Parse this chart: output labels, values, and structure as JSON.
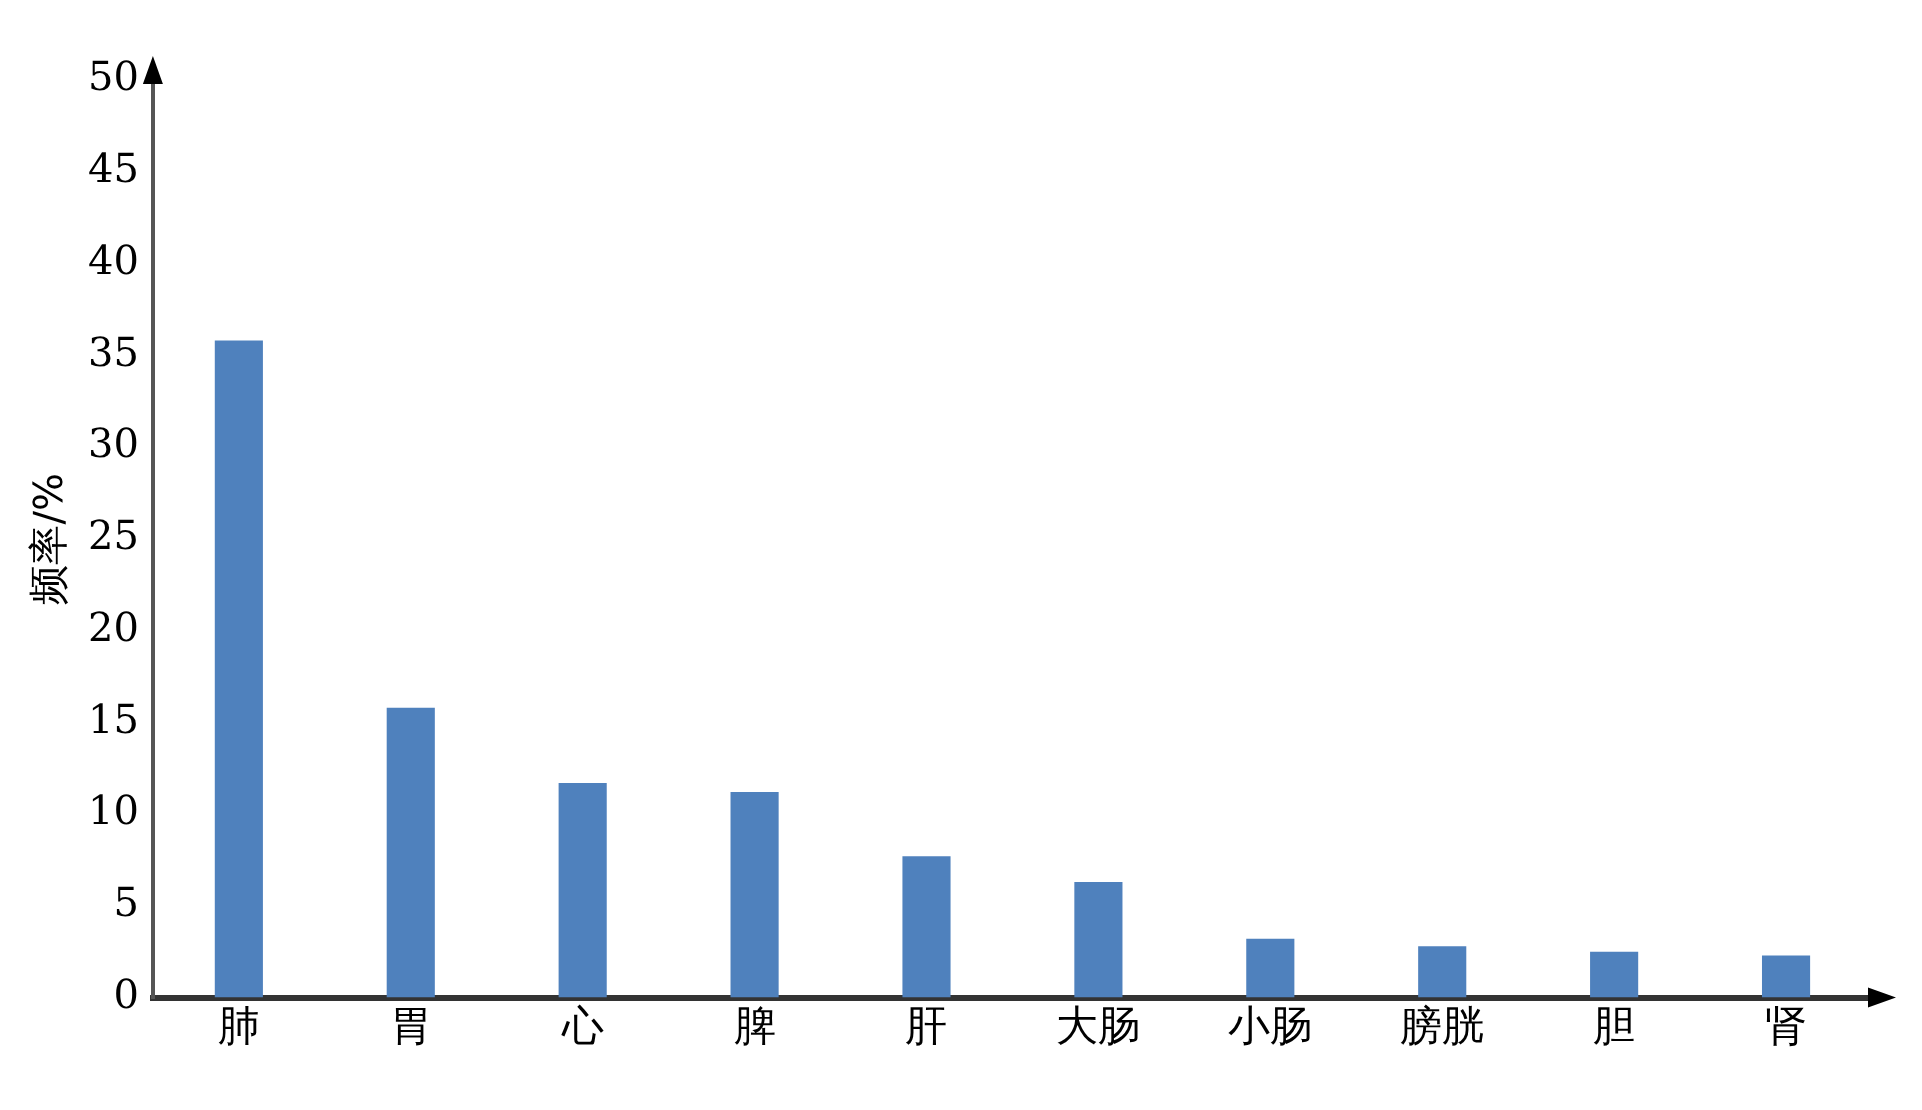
{
  "chart_data": {
    "type": "bar",
    "ylabel": "频率/%",
    "categories": [
      "肺",
      "胃",
      "心",
      "脾",
      "肝",
      "大肠",
      "小肠",
      "膀胱",
      "胆",
      "肾"
    ],
    "values": [
      35.8,
      15.8,
      11.7,
      11.2,
      7.7,
      6.3,
      3.2,
      2.8,
      2.5,
      2.3
    ],
    "color": "#4f81bd",
    "ylim": [
      0,
      50
    ],
    "yticks": [
      0,
      5,
      10,
      15,
      20,
      25,
      30,
      35,
      40,
      45,
      50
    ],
    "grid": false,
    "legend": false
  }
}
